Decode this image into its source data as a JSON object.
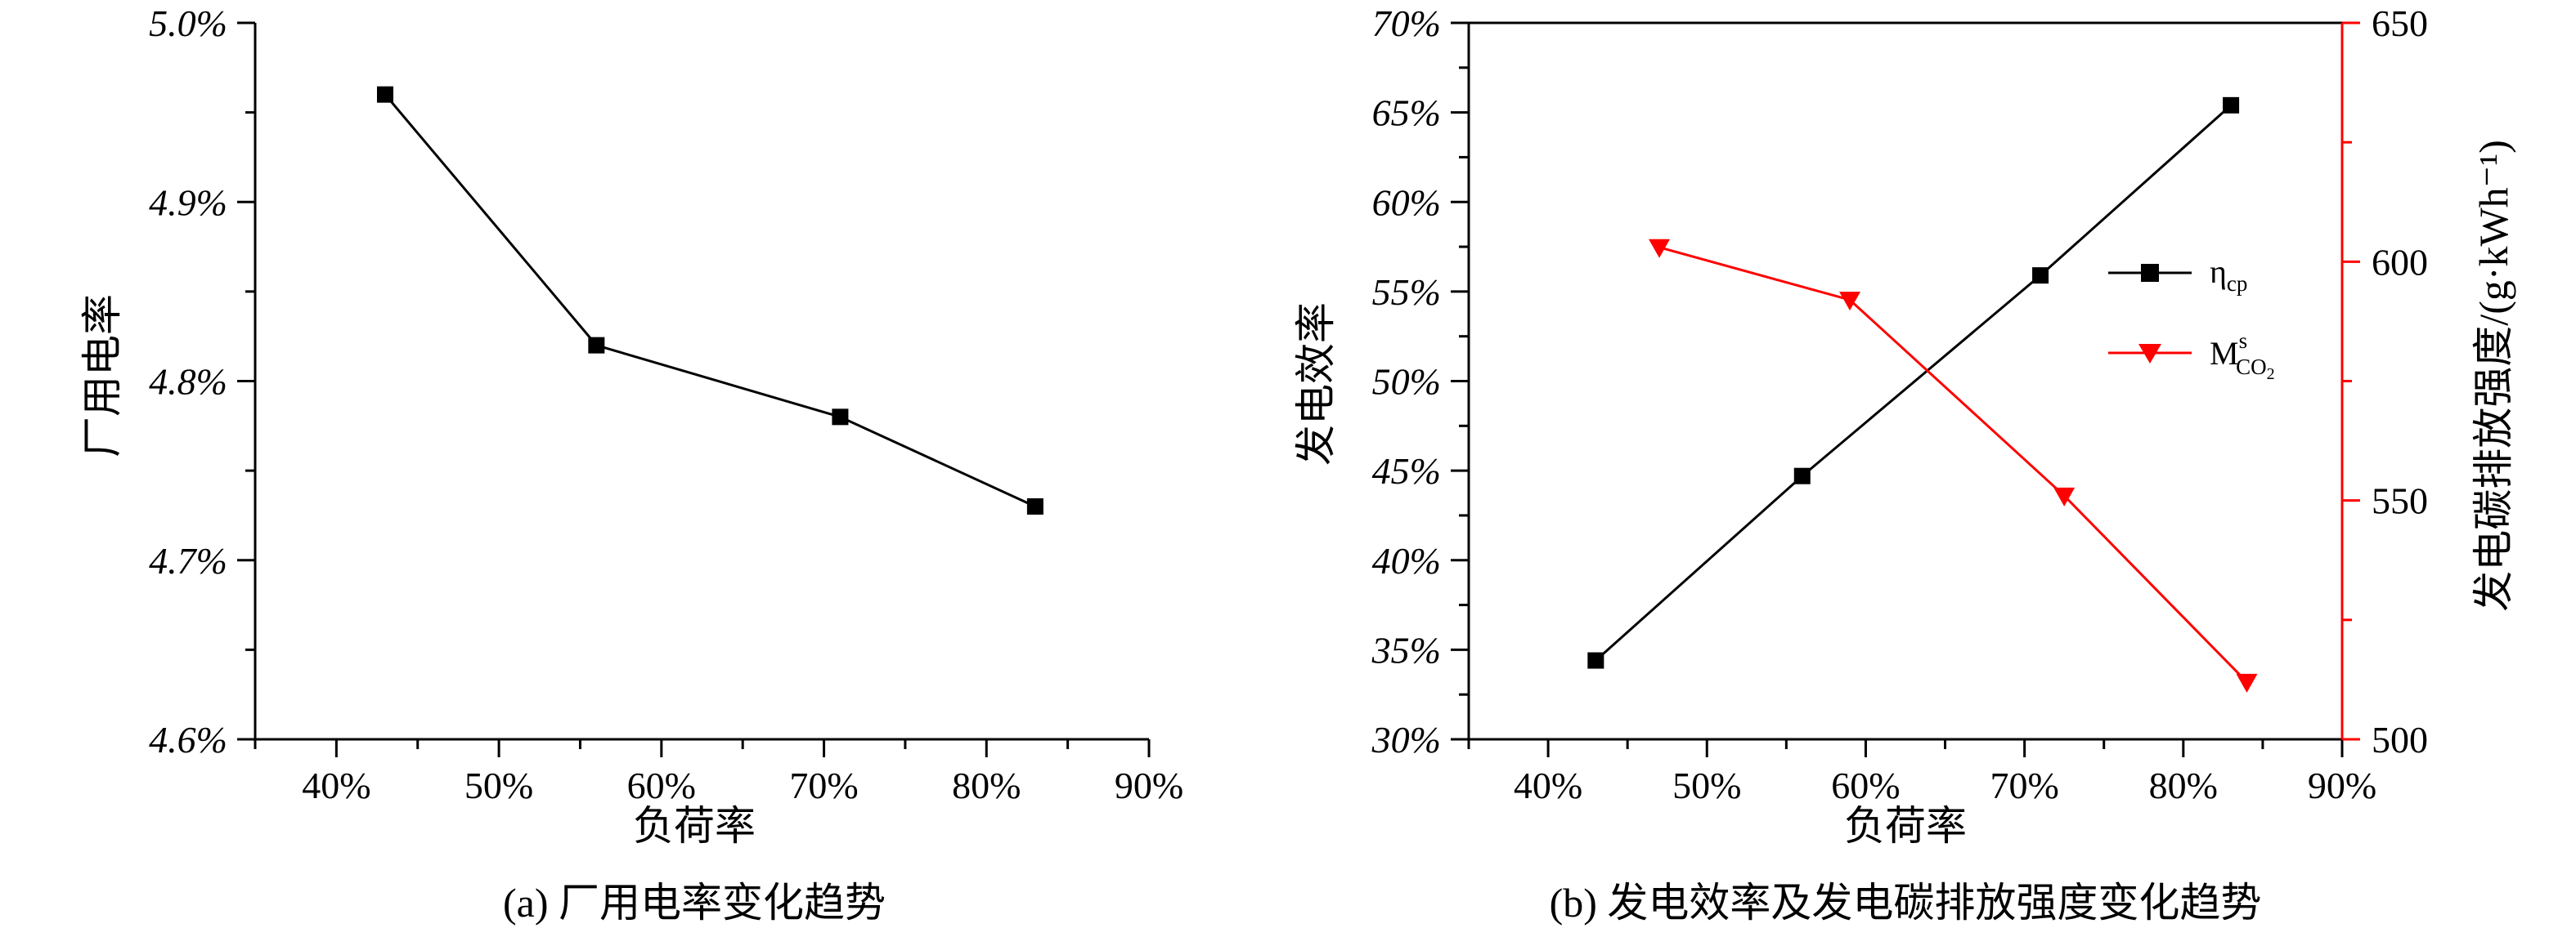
{
  "chart_data": [
    {
      "type": "line",
      "caption": "(a) 厂用电率变化趋势",
      "xlabel": "负荷率",
      "ylabel": "厂用电率",
      "xlim": [
        35,
        90
      ],
      "ylim": [
        4.6,
        5.0
      ],
      "x_ticks": [
        40,
        50,
        60,
        70,
        80,
        90
      ],
      "x_tick_labels": [
        "40%",
        "50%",
        "60%",
        "70%",
        "80%",
        "90%"
      ],
      "y_ticks": [
        4.6,
        4.7,
        4.8,
        4.9,
        5.0
      ],
      "y_tick_labels": [
        "4.6%",
        "4.7%",
        "4.8%",
        "4.9%",
        "5.0%"
      ],
      "grid": false,
      "series": [
        {
          "color": "#000000",
          "marker": "square",
          "x": [
            43,
            56,
            71,
            83
          ],
          "y": [
            4.96,
            4.82,
            4.78,
            4.73
          ]
        }
      ]
    },
    {
      "type": "line",
      "caption": "(b) 发电效率及发电碳排放强度变化趋势",
      "xlabel": "负荷率",
      "ylabel": "发电效率",
      "y2label": "发电碳排放强度/(g·kWh⁻¹)",
      "xlim": [
        35,
        90
      ],
      "ylim": [
        30,
        70
      ],
      "y2lim": [
        500,
        650
      ],
      "x_ticks": [
        40,
        50,
        60,
        70,
        80,
        90
      ],
      "x_tick_labels": [
        "40%",
        "50%",
        "60%",
        "70%",
        "80%",
        "90%"
      ],
      "y_ticks": [
        30,
        35,
        40,
        45,
        50,
        55,
        60,
        65,
        70
      ],
      "y_tick_labels": [
        "30%",
        "35%",
        "40%",
        "45%",
        "50%",
        "55%",
        "60%",
        "65%",
        "70%"
      ],
      "y2_ticks": [
        500,
        550,
        600,
        650
      ],
      "y2_tick_labels": [
        "500",
        "550",
        "600",
        "650"
      ],
      "grid": false,
      "legend_position": "right",
      "series": [
        {
          "name": "ηcp",
          "name_main": "η",
          "name_sub": "cp",
          "axis": "left",
          "color": "#000000",
          "marker": "square",
          "x": [
            43,
            56,
            71,
            83
          ],
          "y": [
            34.4,
            44.7,
            55.9,
            65.4
          ]
        },
        {
          "name": "MsCO2",
          "name_main": "M",
          "name_sup": "s",
          "name_sub": "CO",
          "name_sub2": "2",
          "axis": "right",
          "color": "#ff0000",
          "marker": "triangle-down",
          "x": [
            47,
            59,
            72.5,
            84
          ],
          "y": [
            603,
            592,
            551,
            512
          ]
        }
      ]
    }
  ]
}
